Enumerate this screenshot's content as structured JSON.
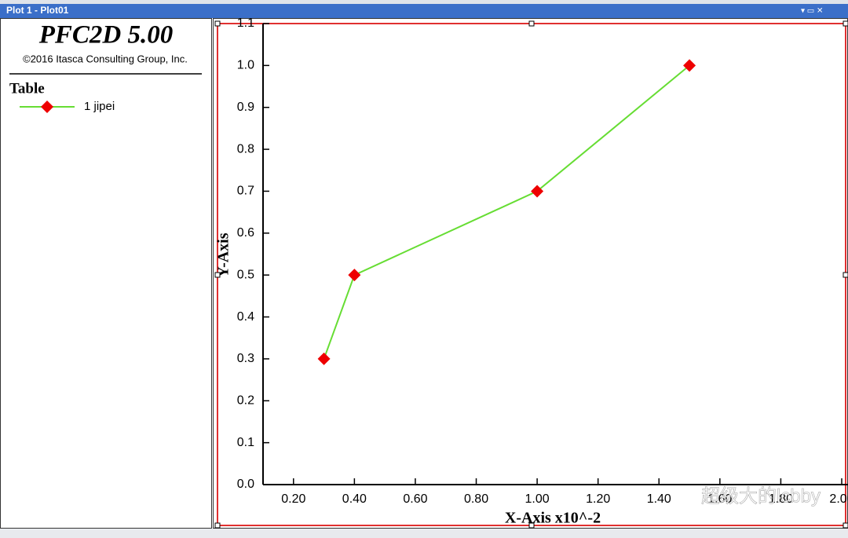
{
  "window": {
    "title": "Plot 1 - Plot01"
  },
  "panel": {
    "title": "PFC2D 5.00",
    "copyright": "©2016 Itasca Consulting Group, Inc.",
    "legend_title": "Table"
  },
  "chart_data": {
    "type": "line",
    "x_label": "X-Axis x10^-2",
    "y_label": "Y-Axis",
    "series": [
      {
        "name": "1 jipei",
        "color": "#66dd33",
        "marker_color": "#ee0000",
        "x": [
          0.3,
          0.4,
          1.0,
          1.5
        ],
        "values": [
          0.3,
          0.5,
          0.7,
          1.0
        ]
      }
    ],
    "xlim": [
      0.1,
      2.0
    ],
    "ylim": [
      0,
      1.1
    ],
    "xticks": [
      {
        "value": 0.2,
        "label": "0.20"
      },
      {
        "value": 0.4,
        "label": "0.40"
      },
      {
        "value": 0.6,
        "label": "0.60"
      },
      {
        "value": 0.8,
        "label": "0.80"
      },
      {
        "value": 1.0,
        "label": "1.00"
      },
      {
        "value": 1.2,
        "label": "1.20"
      },
      {
        "value": 1.4,
        "label": "1.40"
      },
      {
        "value": 1.6,
        "label": "1.60"
      },
      {
        "value": 1.8,
        "label": "1.80"
      },
      {
        "value": 2.0,
        "label": "2.00"
      }
    ],
    "yticks": [
      {
        "value": 0,
        "label": "0.0"
      },
      0.1,
      0.2,
      0.3,
      0.4,
      0.5,
      0.6,
      0.7,
      0.8,
      0.9,
      {
        "value": 1,
        "label": "1.0"
      },
      1.1
    ]
  },
  "watermark": "超级大的lcbby"
}
